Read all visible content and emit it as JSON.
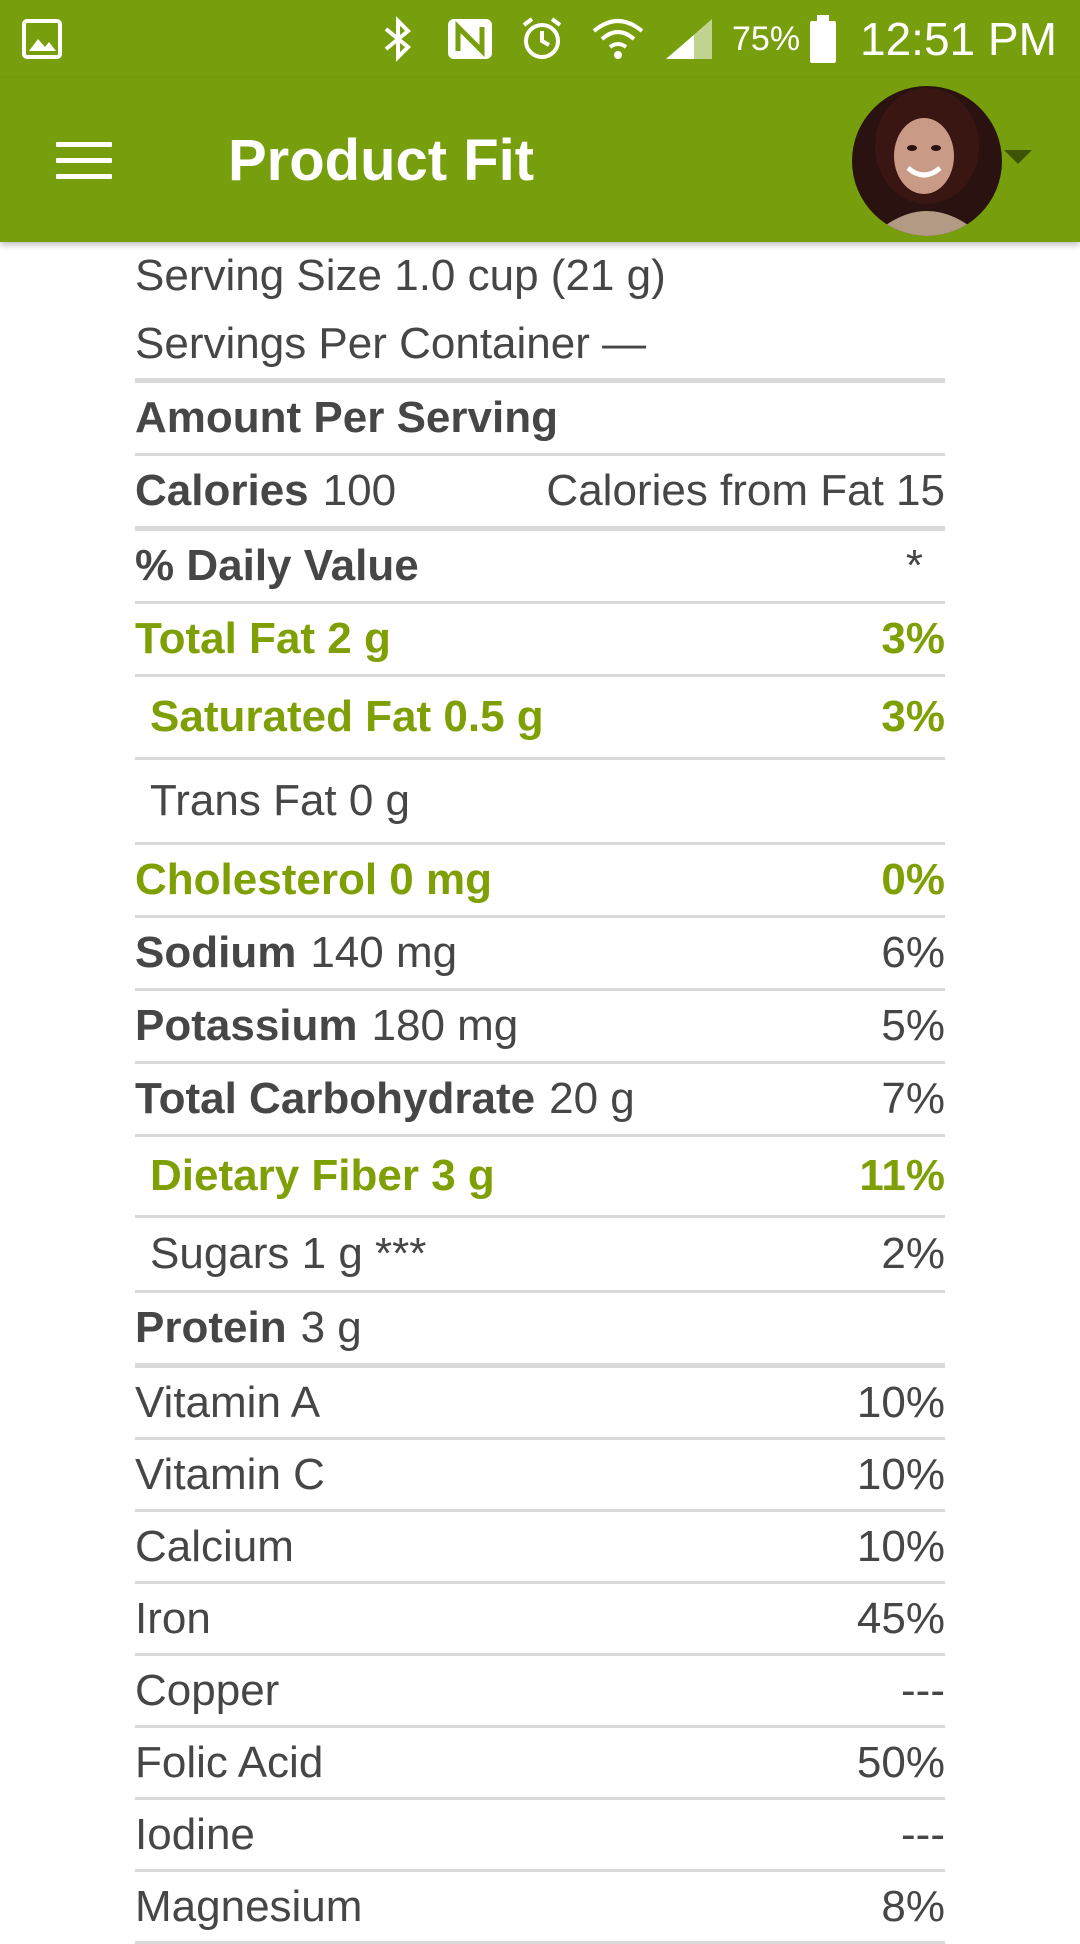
{
  "status_bar": {
    "battery_percent": "75%",
    "time": "12:51 PM",
    "icons": [
      "gallery-icon",
      "bluetooth-icon",
      "nfc-icon",
      "alarm-icon",
      "wifi-icon",
      "signal-icon",
      "battery-icon"
    ]
  },
  "app_bar": {
    "title": "Product Fit",
    "menu_icon": "hamburger-menu-icon",
    "avatar_icon": "user-avatar",
    "dropdown_icon": "caret-down-icon"
  },
  "colors": {
    "app_bar": "#779e0c",
    "highlight_text": "#7ea005",
    "body_text": "#464646",
    "divider": "#d9d9d9"
  },
  "nutrition": {
    "serving_size": "Serving Size 1.0 cup (21 g)",
    "servings_per_container": "Servings Per Container —",
    "amount_per_serving": "Amount Per Serving",
    "calories_label": "Calories",
    "calories_value": "100",
    "calories_from_fat": "Calories from Fat 15",
    "daily_value_header": "% Daily Value",
    "daily_value_marker": "*",
    "total_fat": {
      "label": "Total Fat 2 g",
      "pct": "3%"
    },
    "saturated_fat": {
      "label": "Saturated Fat 0.5 g",
      "pct": "3%"
    },
    "trans_fat": {
      "label": "Trans Fat 0 g"
    },
    "cholesterol": {
      "label": "Cholesterol 0 mg",
      "pct": "0%"
    },
    "sodium": {
      "label": "Sodium",
      "value": "140 mg",
      "pct": "6%"
    },
    "potassium": {
      "label": "Potassium",
      "value": "180 mg",
      "pct": "5%"
    },
    "total_carbohydrate": {
      "label": "Total Carbohydrate",
      "value": "20 g",
      "pct": "7%"
    },
    "dietary_fiber": {
      "label": "Dietary Fiber 3 g",
      "pct": "11%"
    },
    "sugars": {
      "label": "Sugars 1 g ***",
      "pct": "2%"
    },
    "protein": {
      "label": "Protein",
      "value": "3 g"
    },
    "vitamins": [
      {
        "label": "Vitamin A",
        "pct": "10%"
      },
      {
        "label": "Vitamin C",
        "pct": "10%"
      },
      {
        "label": "Calcium",
        "pct": "10%"
      },
      {
        "label": "Iron",
        "pct": "45%"
      },
      {
        "label": "Copper",
        "pct": "---"
      },
      {
        "label": "Folic Acid",
        "pct": "50%"
      },
      {
        "label": "Iodine",
        "pct": "---"
      },
      {
        "label": "Magnesium",
        "pct": "8%"
      }
    ]
  }
}
